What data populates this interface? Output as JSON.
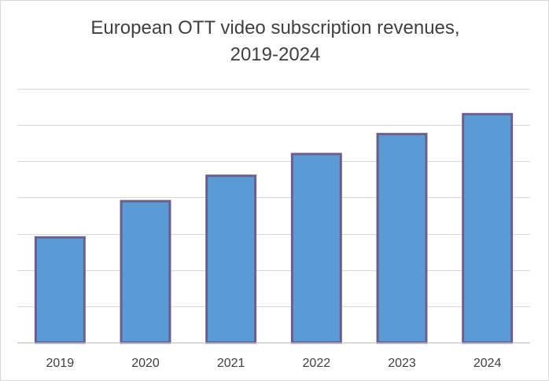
{
  "chart_data": {
    "type": "bar",
    "title_lines": [
      "European OTT video subscription revenues,",
      "2019-2024"
    ],
    "categories": [
      "2019",
      "2020",
      "2021",
      "2022",
      "2023",
      "2024"
    ],
    "values": [
      2.9,
      3.9,
      4.6,
      5.2,
      5.75,
      6.3
    ],
    "ylim": [
      0,
      7
    ],
    "grid": true,
    "legend": "none",
    "colors": {
      "bar_fill": "#5b9bd5",
      "bar_edge": "#6b5f8e",
      "grid": "#d9d9d9",
      "axis": "#bfbfbf"
    }
  }
}
